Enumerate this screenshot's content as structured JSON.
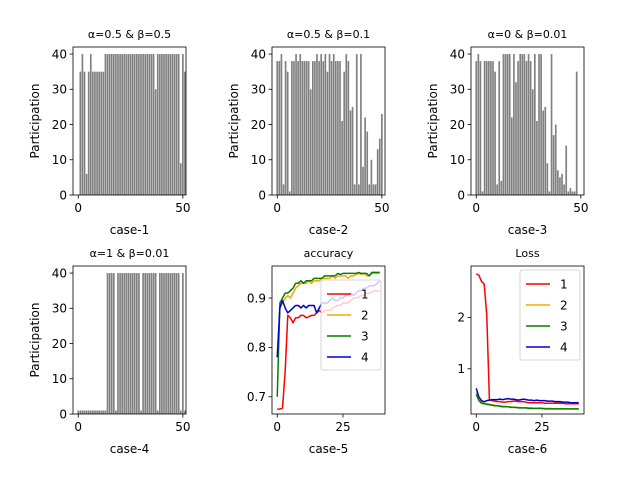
{
  "chart_data": [
    {
      "type": "bar",
      "title": "α=0.5 & β=0.5",
      "xlabel": "case-1",
      "ylabel": "Participation",
      "xlim": [
        -2.5,
        51.5
      ],
      "ylim": [
        0,
        42
      ],
      "xticks": [
        0,
        50
      ],
      "yticks": [
        0,
        10,
        20,
        30,
        40
      ],
      "values": [
        0,
        35,
        40,
        35,
        6,
        35,
        40,
        35,
        35,
        35,
        35,
        35,
        35,
        40,
        40,
        40,
        40,
        40,
        40,
        40,
        40,
        40,
        40,
        40,
        40,
        40,
        40,
        40,
        40,
        40,
        40,
        40,
        40,
        40,
        40,
        40,
        40,
        30,
        40,
        40,
        40,
        40,
        40,
        40,
        40,
        40,
        40,
        40,
        40,
        9,
        40,
        35
      ]
    },
    {
      "type": "bar",
      "title": "α=0.5 & β=0.1",
      "xlabel": "case-2",
      "ylabel": "Participation",
      "xlim": [
        -2.5,
        51.5
      ],
      "ylim": [
        0,
        42
      ],
      "xticks": [
        0,
        50
      ],
      "yticks": [
        0,
        10,
        20,
        30,
        40
      ],
      "values": [
        38,
        38,
        40,
        3,
        38,
        35,
        1,
        38,
        38,
        40,
        38,
        40,
        38,
        38,
        38,
        38,
        30,
        38,
        38,
        40,
        38,
        40,
        38,
        40,
        35,
        40,
        38,
        40,
        38,
        38,
        38,
        21,
        35,
        40,
        38,
        24,
        25,
        3,
        40,
        3,
        40,
        8,
        22,
        18,
        3,
        10,
        3,
        3,
        13,
        16,
        23,
        0
      ]
    },
    {
      "type": "bar",
      "title": "α=0 & β=0.01",
      "xlabel": "case-3",
      "ylabel": "Participation",
      "xlim": [
        -2.5,
        51.5
      ],
      "ylim": [
        0,
        42
      ],
      "xticks": [
        0,
        50
      ],
      "yticks": [
        0,
        10,
        20,
        30,
        40
      ],
      "values": [
        38,
        40,
        38,
        1,
        38,
        38,
        38,
        38,
        38,
        35,
        3,
        38,
        4,
        40,
        40,
        40,
        40,
        22,
        40,
        32,
        38,
        40,
        40,
        40,
        38,
        40,
        38,
        30,
        40,
        21,
        40,
        40,
        24,
        25,
        9,
        1,
        40,
        17,
        20,
        7,
        5,
        6,
        3,
        14,
        1,
        2,
        1,
        1,
        35,
        0,
        0,
        0
      ]
    },
    {
      "type": "bar",
      "title": "α=1 & β=0.01",
      "xlabel": "case-4",
      "ylabel": "Participation",
      "xlim": [
        -2.5,
        51.5
      ],
      "ylim": [
        0,
        42
      ],
      "xticks": [
        0,
        50
      ],
      "yticks": [
        0,
        10,
        20,
        30,
        40
      ],
      "values": [
        1,
        1,
        1,
        1,
        1,
        1,
        1,
        1,
        1,
        1,
        1,
        1,
        1,
        1,
        40,
        40,
        40,
        40,
        1,
        40,
        40,
        40,
        40,
        40,
        40,
        40,
        40,
        40,
        40,
        40,
        1,
        40,
        40,
        40,
        40,
        40,
        40,
        40,
        1,
        40,
        40,
        40,
        40,
        40,
        40,
        40,
        40,
        40,
        40,
        1,
        40,
        1
      ]
    },
    {
      "type": "line",
      "title": "accuracy",
      "xlabel": "case-5",
      "ylabel": "",
      "xlim": [
        -2,
        41
      ],
      "ylim": [
        0.665,
        0.965
      ],
      "xticks": [
        0,
        25
      ],
      "yticks": [
        0.7,
        0.8,
        0.9
      ],
      "legend": "right",
      "series": [
        {
          "name": "1",
          "color": "#ff0000",
          "values": [
            0.675,
            0.675,
            0.677,
            0.75,
            0.865,
            0.86,
            0.85,
            0.86,
            0.86,
            0.865,
            0.865,
            0.86,
            0.862,
            0.865,
            0.865,
            0.87,
            0.875,
            0.87,
            0.875,
            0.875,
            0.875,
            0.88,
            0.882,
            0.885,
            0.885,
            0.89,
            0.89,
            0.89,
            0.895,
            0.9,
            0.9,
            0.902,
            0.905,
            0.905,
            0.91,
            0.91,
            0.912,
            0.915,
            0.915,
            0.913
          ]
        },
        {
          "name": "2",
          "color": "#ffa500",
          "values": [
            0.78,
            0.88,
            0.89,
            0.9,
            0.905,
            0.9,
            0.91,
            0.92,
            0.925,
            0.93,
            0.93,
            0.93,
            0.935,
            0.93,
            0.935,
            0.935,
            0.935,
            0.94,
            0.94,
            0.94,
            0.94,
            0.945,
            0.94,
            0.945,
            0.945,
            0.945,
            0.945,
            0.94,
            0.945,
            0.945,
            0.948,
            0.95,
            0.948,
            0.95,
            0.945,
            0.945,
            0.95,
            0.95,
            0.95,
            0.95
          ]
        },
        {
          "name": "3",
          "color": "#008000",
          "values": [
            0.7,
            0.89,
            0.9,
            0.91,
            0.91,
            0.915,
            0.92,
            0.93,
            0.93,
            0.935,
            0.93,
            0.935,
            0.935,
            0.935,
            0.94,
            0.94,
            0.94,
            0.94,
            0.945,
            0.945,
            0.945,
            0.945,
            0.945,
            0.95,
            0.948,
            0.95,
            0.95,
            0.95,
            0.95,
            0.95,
            0.95,
            0.952,
            0.95,
            0.95,
            0.95,
            0.945,
            0.952,
            0.952,
            0.952,
            0.952
          ]
        },
        {
          "name": "4",
          "color": "#0000cd",
          "values": [
            0.78,
            0.88,
            0.895,
            0.88,
            0.87,
            0.875,
            0.88,
            0.885,
            0.885,
            0.88,
            0.885,
            0.88,
            0.885,
            0.885,
            0.885,
            0.87,
            0.88,
            0.89,
            0.89,
            0.89,
            0.895,
            0.9,
            0.895,
            0.895,
            0.9,
            0.9,
            0.905,
            0.905,
            0.91,
            0.905,
            0.91,
            0.915,
            0.915,
            0.92,
            0.92,
            0.925,
            0.925,
            0.925,
            0.93,
            0.935
          ]
        }
      ]
    },
    {
      "type": "line",
      "title": "Loss",
      "xlabel": "case-6",
      "ylabel": "",
      "xlim": [
        -2,
        41
      ],
      "ylim": [
        0.12,
        3.0
      ],
      "xticks": [
        0,
        25
      ],
      "yticks": [
        1,
        2
      ],
      "legend": "top-right",
      "series": [
        {
          "name": "1",
          "color": "#ff0000",
          "values": [
            2.85,
            2.82,
            2.7,
            2.65,
            2.05,
            0.4,
            0.38,
            0.37,
            0.36,
            0.36,
            0.35,
            0.35,
            0.36,
            0.36,
            0.37,
            0.37,
            0.36,
            0.36,
            0.36,
            0.35,
            0.34,
            0.34,
            0.34,
            0.34,
            0.34,
            0.34,
            0.33,
            0.33,
            0.33,
            0.33,
            0.33,
            0.33,
            0.33,
            0.33,
            0.32,
            0.32,
            0.32,
            0.32,
            0.32,
            0.32
          ]
        },
        {
          "name": "2",
          "color": "#ffa500",
          "values": [
            0.55,
            0.4,
            0.35,
            0.33,
            0.32,
            0.31,
            0.3,
            0.29,
            0.28,
            0.28,
            0.27,
            0.27,
            0.26,
            0.26,
            0.25,
            0.25,
            0.25,
            0.24,
            0.24,
            0.24,
            0.24,
            0.24,
            0.23,
            0.23,
            0.24,
            0.23,
            0.23,
            0.23,
            0.23,
            0.22,
            0.22,
            0.22,
            0.22,
            0.22,
            0.22,
            0.22,
            0.22,
            0.22,
            0.22,
            0.22
          ]
        },
        {
          "name": "3",
          "color": "#008000",
          "values": [
            0.5,
            0.38,
            0.33,
            0.32,
            0.31,
            0.3,
            0.29,
            0.28,
            0.28,
            0.27,
            0.26,
            0.26,
            0.26,
            0.25,
            0.25,
            0.25,
            0.24,
            0.24,
            0.24,
            0.24,
            0.23,
            0.23,
            0.23,
            0.23,
            0.23,
            0.23,
            0.22,
            0.22,
            0.22,
            0.22,
            0.22,
            0.22,
            0.22,
            0.22,
            0.22,
            0.22,
            0.22,
            0.22,
            0.22,
            0.22
          ]
        },
        {
          "name": "4",
          "color": "#0000cd",
          "values": [
            0.62,
            0.45,
            0.38,
            0.36,
            0.38,
            0.39,
            0.4,
            0.4,
            0.4,
            0.41,
            0.4,
            0.41,
            0.42,
            0.41,
            0.41,
            0.4,
            0.39,
            0.4,
            0.41,
            0.4,
            0.39,
            0.39,
            0.38,
            0.39,
            0.38,
            0.38,
            0.38,
            0.37,
            0.37,
            0.37,
            0.36,
            0.36,
            0.36,
            0.35,
            0.35,
            0.35,
            0.34,
            0.34,
            0.34,
            0.34
          ]
        }
      ]
    }
  ]
}
